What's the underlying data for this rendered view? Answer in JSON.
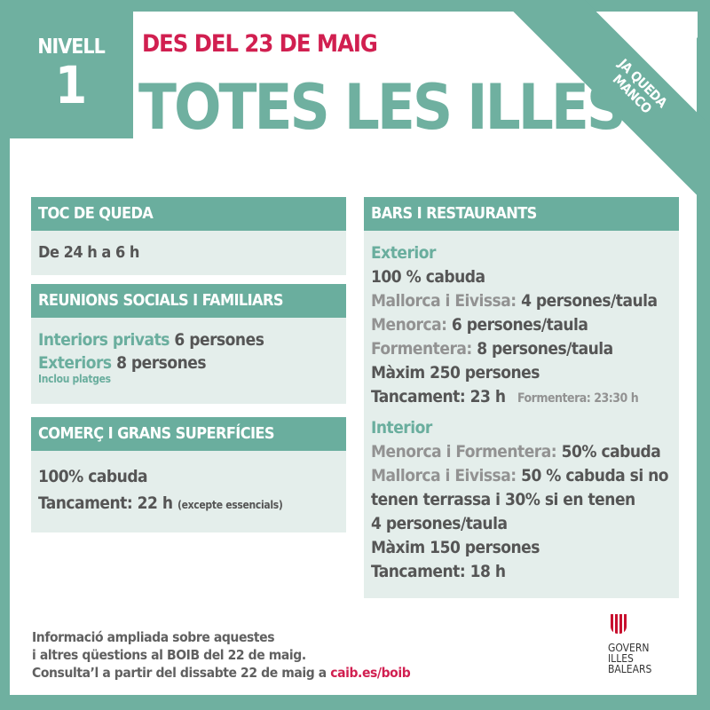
{
  "header": {
    "level_label": "NIVELL",
    "level_number": "1",
    "date": "DES DEL 23 DE MAIG",
    "title": "TOTES LES ILLES",
    "ribbon": [
      "JA QUEDA",
      "MANCO"
    ]
  },
  "toc": {
    "heading": "TOC DE QUEDA",
    "text": "De 24 h a 6 h"
  },
  "reunions": {
    "heading": "REUNIONS SOCIALS I FAMILIARS",
    "interiors_label": "Interiors privats",
    "interiors_value": "6 persones",
    "exteriors_label": "Exteriors",
    "exteriors_value": "8 persones",
    "note": "Inclou platges"
  },
  "comerc": {
    "heading": "COMERÇ I GRANS SUPERFÍCIES",
    "capacity": "100% cabuda",
    "closing": "Tancament: 22 h",
    "closing_note": "(excepte essencials)"
  },
  "bars": {
    "heading": "BARS I RESTAURANTS",
    "exterior": {
      "label": "Exterior",
      "capacity": "100 % cabuda",
      "lines": [
        {
          "label": "Mallorca i Eivissa:",
          "value": "4 persones/taula"
        },
        {
          "label": "Menorca:",
          "value": "6 persones/taula"
        },
        {
          "label": "Formentera:",
          "value": "8 persones/taula"
        }
      ],
      "max": "Màxim 250 persones",
      "closing": "Tancament: 23 h",
      "closing_note": "Formentera: 23:30 h"
    },
    "interior": {
      "label": "Interior",
      "line1_label": "Menorca i Formentera:",
      "line1_value": "50% cabuda",
      "line2_label": "Mallorca i Eivissa:",
      "line2_value": "50 % cabuda si no tenen terrassa i 30% si en tenen",
      "per_table": "4 persones/taula",
      "max": "Màxim 150 persones",
      "closing": "Tancament: 18 h"
    }
  },
  "footer": {
    "line1": "Informació ampliada sobre aquestes",
    "line2": "i altres qüestions al BOIB del 22 de maig.",
    "line3": "Consulta’l a partir del dissabte 22 de maig a",
    "link": "caib.es/boib"
  },
  "logo": {
    "lines": [
      "GOVERN",
      "ILLES",
      "BALEARS"
    ]
  },
  "colors": {
    "teal": "#6fb0a0",
    "red": "#d11f50",
    "box": "#e4eeeb"
  }
}
